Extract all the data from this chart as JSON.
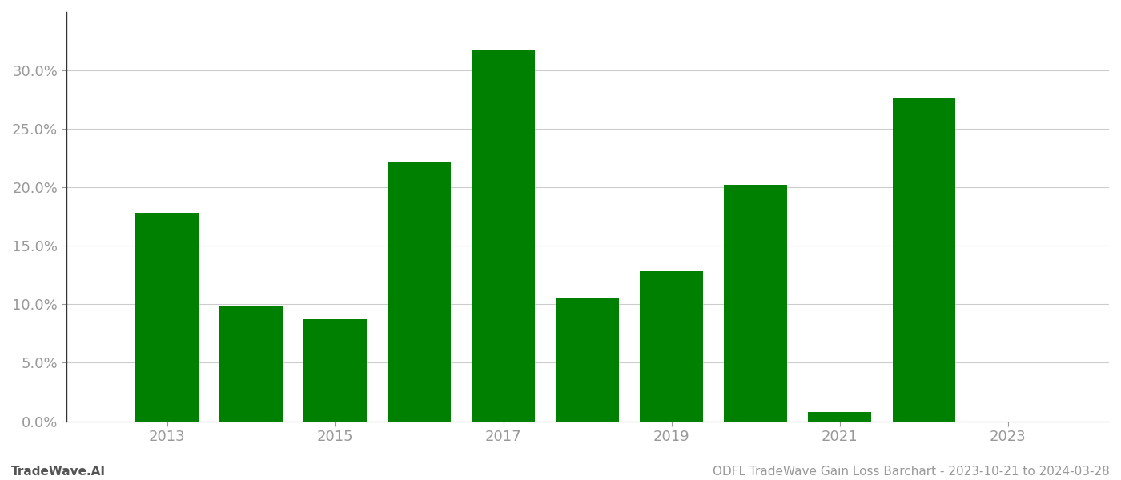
{
  "years": [
    2013,
    2014,
    2015,
    2016,
    2017,
    2018,
    2019,
    2020,
    2021,
    2022
  ],
  "values": [
    0.178,
    0.098,
    0.087,
    0.222,
    0.317,
    0.106,
    0.128,
    0.202,
    0.008,
    0.276
  ],
  "bar_color": "#008000",
  "background_color": "#ffffff",
  "grid_color": "#cccccc",
  "footer_left": "TradeWave.AI",
  "footer_right": "ODFL TradeWave Gain Loss Barchart - 2023-10-21 to 2024-03-28",
  "ylim": [
    0,
    0.35
  ],
  "yticks": [
    0.0,
    0.05,
    0.1,
    0.15,
    0.2,
    0.25,
    0.3
  ],
  "xtick_years": [
    2013,
    2015,
    2017,
    2019,
    2021,
    2023
  ],
  "tick_color": "#999999",
  "label_fontsize": 13,
  "footer_fontsize": 11,
  "bar_width": 0.75,
  "xlim_left": 2011.8,
  "xlim_right": 2024.2
}
